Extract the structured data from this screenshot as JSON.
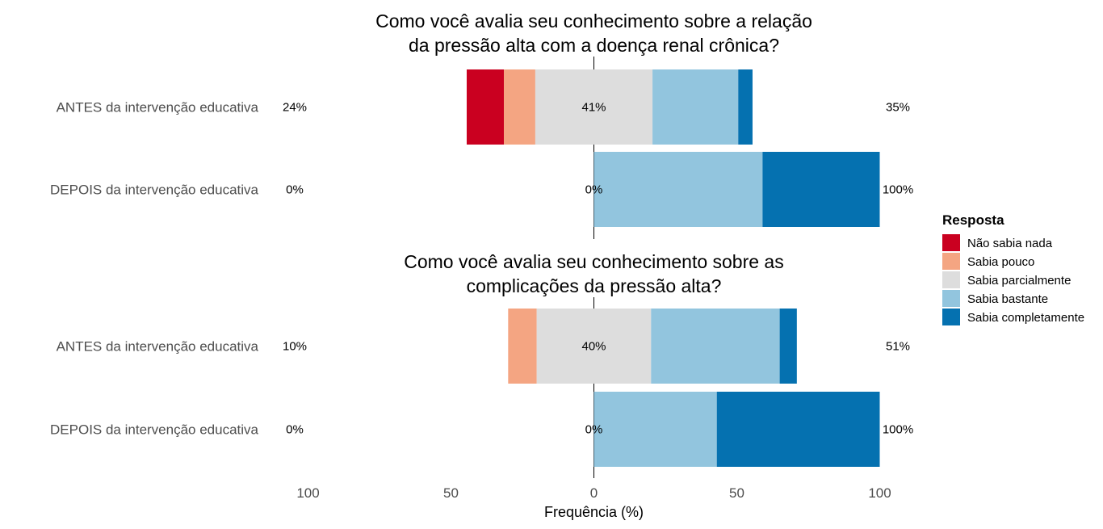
{
  "chart_data": {
    "type": "bar",
    "subtype": "diverging-stacked-likert",
    "xlabel": "Frequência (%)",
    "xlim": [
      -100,
      100
    ],
    "xticks": [
      {
        "value": -100,
        "label": "100"
      },
      {
        "value": -50,
        "label": "50"
      },
      {
        "value": 0,
        "label": "0"
      },
      {
        "value": 50,
        "label": "50"
      },
      {
        "value": 100,
        "label": "100"
      }
    ],
    "legend": {
      "title": "Resposta",
      "position": "right",
      "items": [
        {
          "label": "Não sabia nada",
          "color": "#ca0020"
        },
        {
          "label": "Sabia pouco",
          "color": "#f4a582"
        },
        {
          "label": "Sabia parcialmente",
          "color": "#dddddd"
        },
        {
          "label": "Sabia bastante",
          "color": "#92c5de"
        },
        {
          "label": "Sabia completamente",
          "color": "#0571b0"
        }
      ]
    },
    "panels": [
      {
        "title_lines": [
          "Como você avalia seu conhecimento sobre a relação",
          "da pressão alta com a doença renal crônica?"
        ],
        "rows": [
          {
            "label": "ANTES da intervenção educativa",
            "values": [
              13,
              11,
              41,
              30,
              5
            ],
            "low_label": "24%",
            "neutral_label": "41%",
            "high_label": "35%"
          },
          {
            "label": "DEPOIS da intervenção educativa",
            "values": [
              0,
              0,
              0,
              59,
              41
            ],
            "low_label": "0%",
            "neutral_label": "0%",
            "high_label": "100%"
          }
        ]
      },
      {
        "title_lines": [
          "Como você avalia seu conhecimento sobre as",
          "complicações da pressão alta?"
        ],
        "rows": [
          {
            "label": "ANTES da intervenção educativa",
            "values": [
              0,
              10,
              40,
              45,
              6
            ],
            "low_label": "10%",
            "neutral_label": "40%",
            "high_label": "51%"
          },
          {
            "label": "DEPOIS da intervenção educativa",
            "values": [
              0,
              0,
              0,
              43,
              57
            ],
            "low_label": "0%",
            "neutral_label": "0%",
            "high_label": "100%"
          }
        ]
      }
    ]
  }
}
